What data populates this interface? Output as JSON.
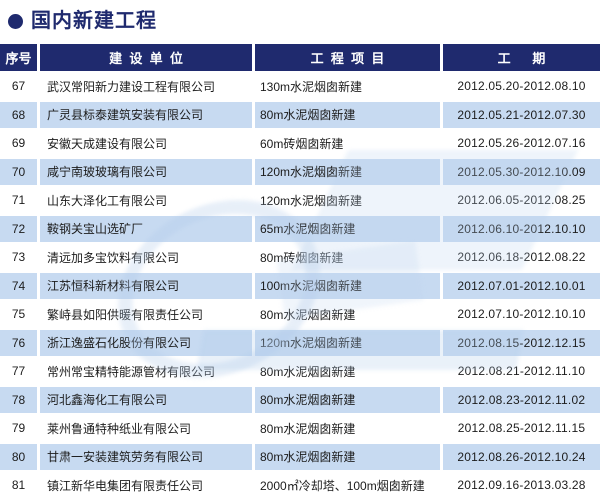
{
  "page": {
    "title": "国内新建工程"
  },
  "colors": {
    "navy": "#1f2a6e",
    "row_stripe": "#c7daf1",
    "text": "#1c1c1c",
    "watermark_blue": "#b0cbea"
  },
  "table": {
    "headers": [
      "序号",
      "建  设  单  位",
      "工  程  项  目",
      "工      期"
    ],
    "rows": [
      {
        "no": "67",
        "company": "武汉常阳新力建设工程有限公司",
        "project": "130m水泥烟囱新建",
        "period": "2012.05.20-2012.08.10"
      },
      {
        "no": "68",
        "company": "广灵县标泰建筑安装有限公司",
        "project": "80m水泥烟囱新建",
        "period": "2012.05.21-2012.07.30"
      },
      {
        "no": "69",
        "company": "安徽天成建设有限公司",
        "project": "60m砖烟囱新建",
        "period": "2012.05.26-2012.07.16"
      },
      {
        "no": "70",
        "company": "咸宁南玻玻璃有限公司",
        "project": "120m水泥烟囱新建",
        "period": "2012.05.30-2012.10.09"
      },
      {
        "no": "71",
        "company": "山东大泽化工有限公司",
        "project": "120m水泥烟囱新建",
        "period": "2012.06.05-2012.08.25"
      },
      {
        "no": "72",
        "company": "鞍钢关宝山选矿厂",
        "project": "65m水泥烟囱新建",
        "period": "2012.06.10-2012.10.10"
      },
      {
        "no": "73",
        "company": "清远加多宝饮料有限公司",
        "project": "80m砖烟囱新建",
        "period": "2012.06.18-2012.08.22"
      },
      {
        "no": "74",
        "company": "江苏恒科新材料有限公司",
        "project": "100m水泥烟囱新建",
        "period": "2012.07.01-2012.10.01"
      },
      {
        "no": "75",
        "company": "繁峙县如阳供暖有限责任公司",
        "project": "80m水泥烟囱新建",
        "period": "2012.07.10-2012.10.10"
      },
      {
        "no": "76",
        "company": "浙江逸盛石化股份有限公司",
        "project": "120m水泥烟囱新建",
        "period": "2012.08.15-2012.12.15"
      },
      {
        "no": "77",
        "company": "常州常宝精特能源管材有限公司",
        "project": "80m水泥烟囱新建",
        "period": "2012.08.21-2012.11.10"
      },
      {
        "no": "78",
        "company": "河北鑫海化工有限公司",
        "project": "80m水泥烟囱新建",
        "period": "2012.08.23-2012.11.02"
      },
      {
        "no": "79",
        "company": "莱州鲁通特种纸业有限公司",
        "project": "80m水泥烟囱新建",
        "period": "2012.08.25-2012.11.15"
      },
      {
        "no": "80",
        "company": "甘肃一安装建筑劳务有限公司",
        "project": "80m水泥烟囱新建",
        "period": "2012.08.26-2012.10.24"
      },
      {
        "no": "81",
        "company": "镇江新华电集团有限责任公司",
        "project": "2000㎡冷却塔、100m烟囱新建",
        "period": "2012.09.16-2013.03.28"
      }
    ]
  }
}
